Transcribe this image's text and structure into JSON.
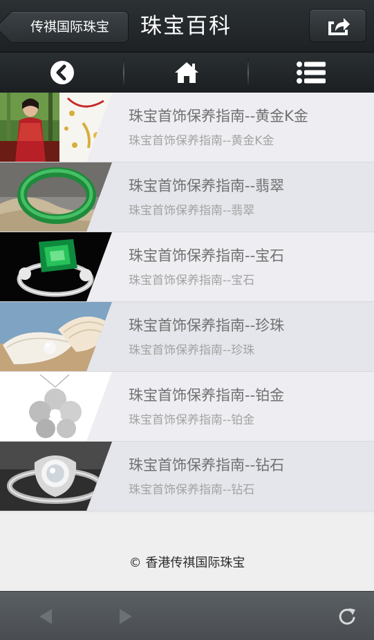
{
  "header": {
    "back_label": "传祺国际珠宝",
    "title": "珠宝百科",
    "share_icon": "share-icon"
  },
  "nav": {
    "items": [
      {
        "icon": "back-circle-icon"
      },
      {
        "icon": "home-icon"
      },
      {
        "icon": "menu-list-icon"
      }
    ]
  },
  "articles": [
    {
      "title": "珠宝首饰保养指南--黄金K金",
      "subtitle": "珠宝首饰保养指南--黄金K金",
      "thumb": "gold-jewelry-model-thumbnail"
    },
    {
      "title": "珠宝首饰保养指南--翡翠",
      "subtitle": "珠宝首饰保养指南--翡翠",
      "thumb": "jade-bangle-thumbnail"
    },
    {
      "title": "珠宝首饰保养指南--宝石",
      "subtitle": "珠宝首饰保养指南--宝石",
      "thumb": "emerald-ring-thumbnail"
    },
    {
      "title": "珠宝首饰保养指南--珍珠",
      "subtitle": "珠宝首饰保养指南--珍珠",
      "thumb": "pearl-shell-thumbnail"
    },
    {
      "title": "珠宝首饰保养指南--铂金",
      "subtitle": "珠宝首饰保养指南--铂金",
      "thumb": "platinum-flower-pendant-thumbnail"
    },
    {
      "title": "珠宝首饰保养指南--钻石",
      "subtitle": "珠宝首饰保养指南--钻石",
      "thumb": "diamond-ring-thumbnail"
    }
  ],
  "footer": {
    "copyright": "© 香港传祺国际珠宝"
  },
  "browser": {
    "back_icon": "browser-back-icon",
    "forward_icon": "browser-forward-icon",
    "refresh_icon": "refresh-icon"
  },
  "colors": {
    "header_bg": "#23282b",
    "list_bg": "#eeeef2",
    "title_text": "#707070",
    "subtitle_text": "#a3a3a3",
    "toolbar_bg": "#505458"
  }
}
